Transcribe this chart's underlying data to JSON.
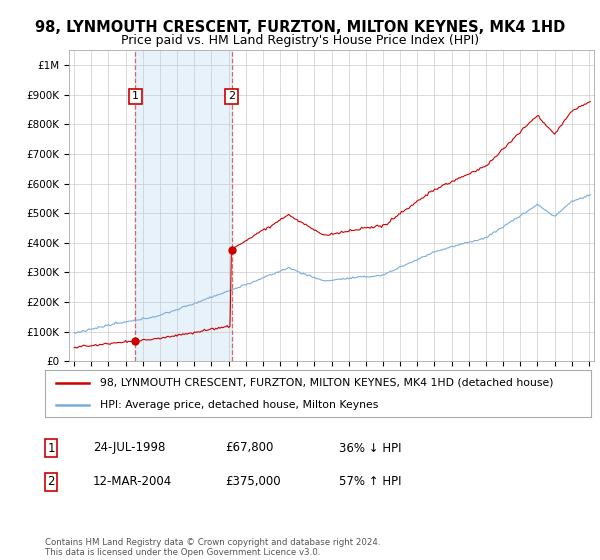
{
  "title": "98, LYNMOUTH CRESCENT, FURZTON, MILTON KEYNES, MK4 1HD",
  "subtitle": "Price paid vs. HM Land Registry's House Price Index (HPI)",
  "ylim": [
    0,
    1050000
  ],
  "yticks": [
    0,
    100000,
    200000,
    300000,
    400000,
    500000,
    600000,
    700000,
    800000,
    900000,
    1000000
  ],
  "ytick_labels": [
    "£0",
    "£100K",
    "£200K",
    "£300K",
    "£400K",
    "£500K",
    "£600K",
    "£700K",
    "£800K",
    "£900K",
    "£1M"
  ],
  "xlim_start": 1994.7,
  "xlim_end": 2025.3,
  "sale1_year": 1998.56,
  "sale1_price": 67800,
  "sale1_label": "1",
  "sale1_date": "24-JUL-1998",
  "sale1_amount": "£67,800",
  "sale1_hpi": "36% ↓ HPI",
  "sale2_year": 2004.19,
  "sale2_price": 375000,
  "sale2_label": "2",
  "sale2_date": "12-MAR-2004",
  "sale2_amount": "£375,000",
  "sale2_hpi": "57% ↑ HPI",
  "property_color": "#cc0000",
  "hpi_color": "#7aaddc",
  "shade_color": "#e8f2fb",
  "legend1": "98, LYNMOUTH CRESCENT, FURZTON, MILTON KEYNES, MK4 1HD (detached house)",
  "legend2": "HPI: Average price, detached house, Milton Keynes",
  "footnote": "Contains HM Land Registry data © Crown copyright and database right 2024.\nThis data is licensed under the Open Government Licence v3.0.",
  "title_fontsize": 10.5,
  "subtitle_fontsize": 9,
  "axis_fontsize": 7.5,
  "background_color": "#ffffff"
}
